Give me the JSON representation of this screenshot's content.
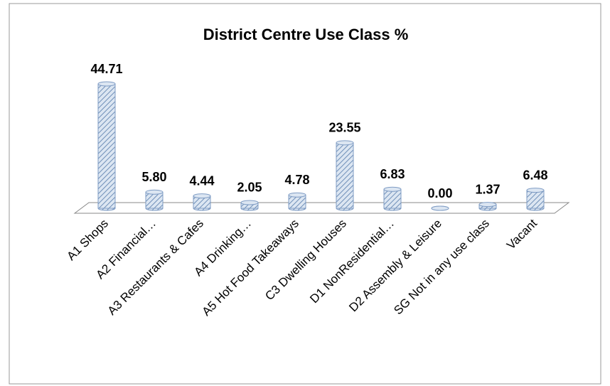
{
  "chart_data": {
    "type": "bar",
    "title": "District Centre Use Class %",
    "categories": [
      "A1 Shops",
      "A2 Financial…",
      "A3 Restaurants & Cafes",
      "A4 Drinking…",
      "A5 Hot Food Takeaways",
      "C3 Dwelling Houses",
      "D1 NonResidential…",
      "D2 Assembly & Leisure",
      "SG Not in any use class",
      "Vacant"
    ],
    "values": [
      44.71,
      5.8,
      4.44,
      2.05,
      4.78,
      23.55,
      6.83,
      0,
      1.37,
      6.48
    ],
    "value_labels": [
      "44.71",
      "5.80",
      "4.44",
      "2.05",
      "4.78",
      "23.55",
      "6.83",
      "0.00",
      "1.37",
      "6.48"
    ],
    "color": "#b8cce4"
  }
}
